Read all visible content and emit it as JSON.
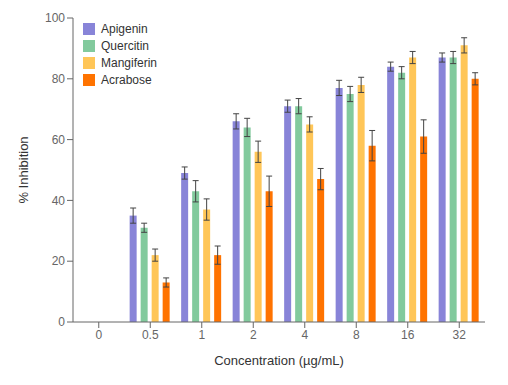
{
  "chart_data": {
    "type": "bar",
    "xlabel": "Concentration (µg/mL)",
    "ylabel": "% Inhibition",
    "categories": [
      "0",
      "0.5",
      "1",
      "2",
      "4",
      "8",
      "16",
      "32"
    ],
    "series": [
      {
        "name": "Apigenin",
        "color": "#8884d8",
        "values": [
          null,
          35,
          49,
          66,
          71,
          77,
          84,
          87
        ],
        "errors": [
          null,
          2.5,
          2.0,
          2.5,
          2.0,
          2.5,
          1.5,
          1.5
        ]
      },
      {
        "name": "Quercitin",
        "color": "#82ca9d",
        "values": [
          null,
          31,
          43,
          64,
          71,
          75,
          82,
          87
        ],
        "errors": [
          null,
          1.5,
          3.5,
          3.0,
          2.5,
          2.5,
          2.0,
          2.0
        ]
      },
      {
        "name": "Mangiferin",
        "color": "#ffc658",
        "values": [
          null,
          22,
          37,
          56,
          65,
          78,
          87,
          91
        ],
        "errors": [
          null,
          2.0,
          3.5,
          3.5,
          2.5,
          2.5,
          2.0,
          2.5
        ]
      },
      {
        "name": "Acrabose",
        "color": "#ff7300",
        "values": [
          null,
          13,
          22,
          43,
          47,
          58,
          61,
          80
        ],
        "errors": [
          null,
          1.5,
          3.0,
          5.0,
          3.5,
          5.0,
          5.5,
          2.0
        ]
      }
    ],
    "ylim": [
      0,
      100
    ],
    "yticks": [
      0,
      20,
      40,
      60,
      80,
      100
    ],
    "grid": false,
    "legend": "upper left"
  }
}
